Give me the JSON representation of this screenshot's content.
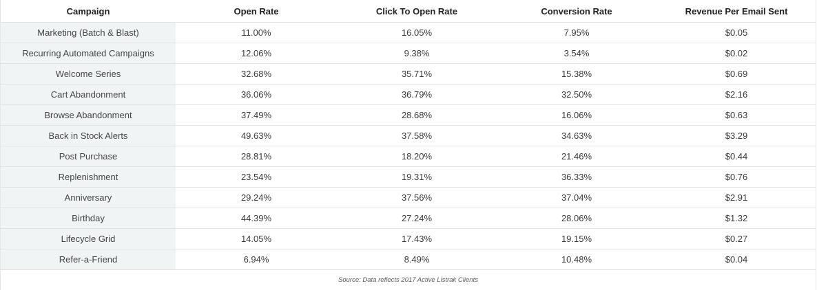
{
  "table": {
    "headers": [
      "Campaign",
      "Open Rate",
      "Click To Open Rate",
      "Conversion Rate",
      "Revenue Per Email Sent"
    ],
    "rows": [
      [
        "Marketing (Batch & Blast)",
        "11.00%",
        "16.05%",
        "7.95%",
        "$0.05"
      ],
      [
        "Recurring Automated Campaigns",
        "12.06%",
        "9.38%",
        "3.54%",
        "$0.02"
      ],
      [
        "Welcome Series",
        "32.68%",
        "35.71%",
        "15.38%",
        "$0.69"
      ],
      [
        "Cart Abandonment",
        "36.06%",
        "36.79%",
        "32.50%",
        "$2.16"
      ],
      [
        "Browse Abandonment",
        "37.49%",
        "28.68%",
        "16.06%",
        "$0.63"
      ],
      [
        "Back in Stock Alerts",
        "49.63%",
        "37.58%",
        "34.63%",
        "$3.29"
      ],
      [
        "Post Purchase",
        "28.81%",
        "18.20%",
        "21.46%",
        "$0.44"
      ],
      [
        "Replenishment",
        "23.54%",
        "19.31%",
        "36.33%",
        "$0.76"
      ],
      [
        "Anniversary",
        "29.24%",
        "37.56%",
        "37.04%",
        "$2.91"
      ],
      [
        "Birthday",
        "44.39%",
        "27.24%",
        "28.06%",
        "$1.32"
      ],
      [
        "Lifecycle Grid",
        "14.05%",
        "17.43%",
        "19.15%",
        "$0.27"
      ],
      [
        "Refer-a-Friend",
        "6.94%",
        "8.49%",
        "10.48%",
        "$0.04"
      ]
    ]
  },
  "source": "Source: Data reflects 2017 Active Listrak Clients",
  "colors": {
    "campaign_cell_bg": "#f1f4f4",
    "row_divider": "#e3e3e3"
  }
}
